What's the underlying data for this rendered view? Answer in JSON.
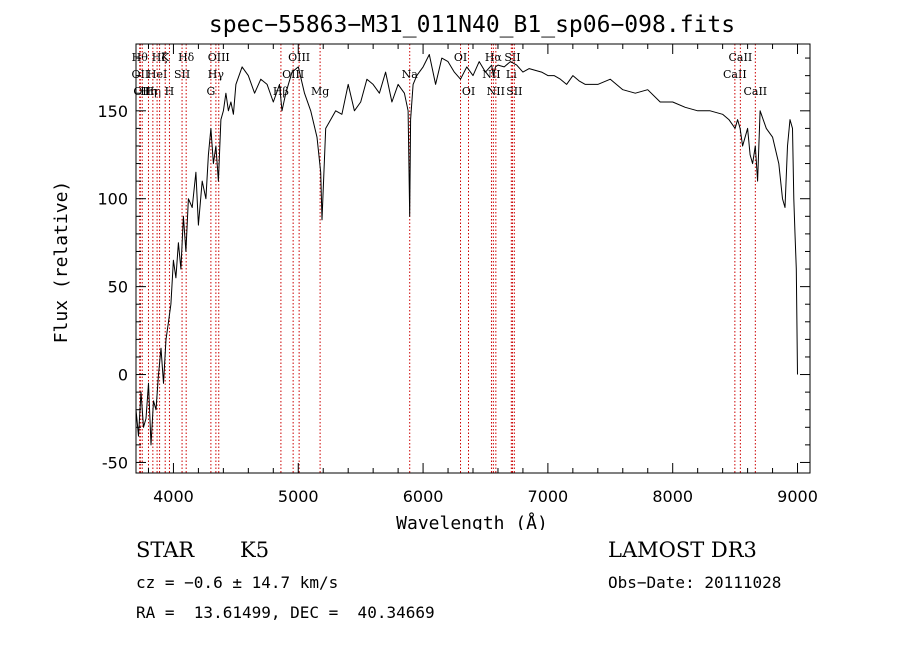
{
  "chart_data": {
    "type": "line",
    "title": "spec−55863−M31_011N40_B1_sp06−098.fits",
    "xlabel": "Wavelength (Å)",
    "ylabel": "Flux (relative)",
    "xlim": [
      3700,
      9100
    ],
    "ylim": [
      -56,
      188
    ],
    "xticks": [
      4000,
      5000,
      6000,
      7000,
      8000,
      9000
    ],
    "yticks": [
      -50,
      0,
      50,
      100,
      150
    ],
    "line_color": "#000000",
    "marker_color": "#cc0000",
    "series": [
      {
        "x": [
          3700,
          3720,
          3740,
          3760,
          3780,
          3800,
          3820,
          3840,
          3860,
          3880,
          3900,
          3920,
          3940,
          3960,
          3980,
          4000,
          4020,
          4040,
          4060,
          4080,
          4100,
          4120,
          4150,
          4180,
          4200,
          4230,
          4260,
          4280,
          4300,
          4320,
          4340,
          4360,
          4380,
          4400,
          4420,
          4440,
          4460,
          4480,
          4500,
          4550,
          4600,
          4650,
          4700,
          4750,
          4800,
          4850,
          4870,
          4900,
          4950,
          5000,
          5050,
          5100,
          5150,
          5180,
          5190,
          5220,
          5260,
          5300,
          5350,
          5400,
          5450,
          5500,
          5550,
          5600,
          5650,
          5700,
          5750,
          5800,
          5850,
          5880,
          5893,
          5900,
          5920,
          5950,
          6000,
          6050,
          6100,
          6150,
          6200,
          6250,
          6300,
          6350,
          6400,
          6450,
          6500,
          6550,
          6563,
          6580,
          6600,
          6650,
          6700,
          6750,
          6800,
          6850,
          6900,
          6950,
          7000,
          7050,
          7100,
          7150,
          7200,
          7250,
          7300,
          7400,
          7500,
          7600,
          7700,
          7800,
          7900,
          8000,
          8100,
          8200,
          8300,
          8400,
          8450,
          8500,
          8520,
          8540,
          8560,
          8600,
          8620,
          8640,
          8662,
          8680,
          8700,
          8750,
          8800,
          8850,
          8880,
          8900,
          8920,
          8940,
          8960,
          8970,
          8980,
          8990,
          9000
        ],
        "y": [
          -20,
          -35,
          -10,
          -30,
          -25,
          -5,
          -40,
          -15,
          -20,
          0,
          15,
          -5,
          20,
          30,
          40,
          65,
          55,
          75,
          60,
          90,
          70,
          100,
          95,
          115,
          85,
          110,
          100,
          125,
          140,
          120,
          130,
          110,
          145,
          150,
          160,
          150,
          155,
          148,
          165,
          175,
          170,
          160,
          168,
          165,
          155,
          165,
          150,
          160,
          172,
          175,
          160,
          150,
          135,
          115,
          88,
          140,
          145,
          150,
          148,
          165,
          150,
          155,
          168,
          165,
          160,
          172,
          155,
          165,
          160,
          150,
          90,
          145,
          165,
          170,
          175,
          182,
          165,
          180,
          178,
          172,
          168,
          175,
          170,
          178,
          172,
          176,
          170,
          175,
          176,
          175,
          178,
          176,
          172,
          174,
          173,
          172,
          170,
          170,
          168,
          165,
          170,
          167,
          165,
          165,
          168,
          162,
          160,
          162,
          155,
          155,
          152,
          150,
          150,
          148,
          145,
          140,
          145,
          140,
          130,
          140,
          125,
          120,
          130,
          110,
          150,
          140,
          135,
          120,
          100,
          95,
          130,
          145,
          140,
          100,
          80,
          60,
          0
        ]
      }
    ],
    "line_markers": [
      {
        "x": 3730,
        "label": "Hθ",
        "row": 1
      },
      {
        "x": 3735,
        "label": "OII",
        "row": 2
      },
      {
        "x": 3750,
        "label": "OII",
        "row": 3
      },
      {
        "x": 3800,
        "label": "Hη",
        "row": 3
      },
      {
        "x": 3835,
        "label": "Hη",
        "row": 3
      },
      {
        "x": 3869,
        "label": "HeI",
        "row": 2
      },
      {
        "x": 3889,
        "label": "Hζ",
        "row": 1
      },
      {
        "x": 3934,
        "label": "K",
        "row": 1
      },
      {
        "x": 3968,
        "label": "H",
        "row": 3
      },
      {
        "x": 4069,
        "label": "SII",
        "row": 2
      },
      {
        "x": 4102,
        "label": "Hδ",
        "row": 1
      },
      {
        "x": 4300,
        "label": "G",
        "row": 3
      },
      {
        "x": 4340,
        "label": "Hγ",
        "row": 2
      },
      {
        "x": 4363,
        "label": "OIII",
        "row": 1
      },
      {
        "x": 4861,
        "label": "Hβ",
        "row": 3
      },
      {
        "x": 4959,
        "label": "OIII",
        "row": 2
      },
      {
        "x": 5007,
        "label": "OIII",
        "row": 1
      },
      {
        "x": 5175,
        "label": "Mg",
        "row": 3
      },
      {
        "x": 5893,
        "label": "Na",
        "row": 2
      },
      {
        "x": 6300,
        "label": "OI",
        "row": 1
      },
      {
        "x": 6364,
        "label": "OI",
        "row": 3
      },
      {
        "x": 6548,
        "label": "NII",
        "row": 2
      },
      {
        "x": 6563,
        "label": "Hα",
        "row": 1
      },
      {
        "x": 6583,
        "label": "NII",
        "row": 3
      },
      {
        "x": 6707,
        "label": "Li",
        "row": 2
      },
      {
        "x": 6716,
        "label": "SII",
        "row": 1
      },
      {
        "x": 6731,
        "label": "SII",
        "row": 3
      },
      {
        "x": 8498,
        "label": "CaII",
        "row": 2
      },
      {
        "x": 8542,
        "label": "CaII",
        "row": 1
      },
      {
        "x": 8662,
        "label": "CaII",
        "row": 3
      }
    ]
  },
  "footer": {
    "object_class": "STAR",
    "subclass": "K5",
    "survey": "LAMOST DR3",
    "cz": "cz = −0.6 ± 14.7 km/s",
    "obs_date": "Obs−Date: 20111028",
    "coords": "RA =  13.61499, DEC =  40.34669"
  }
}
